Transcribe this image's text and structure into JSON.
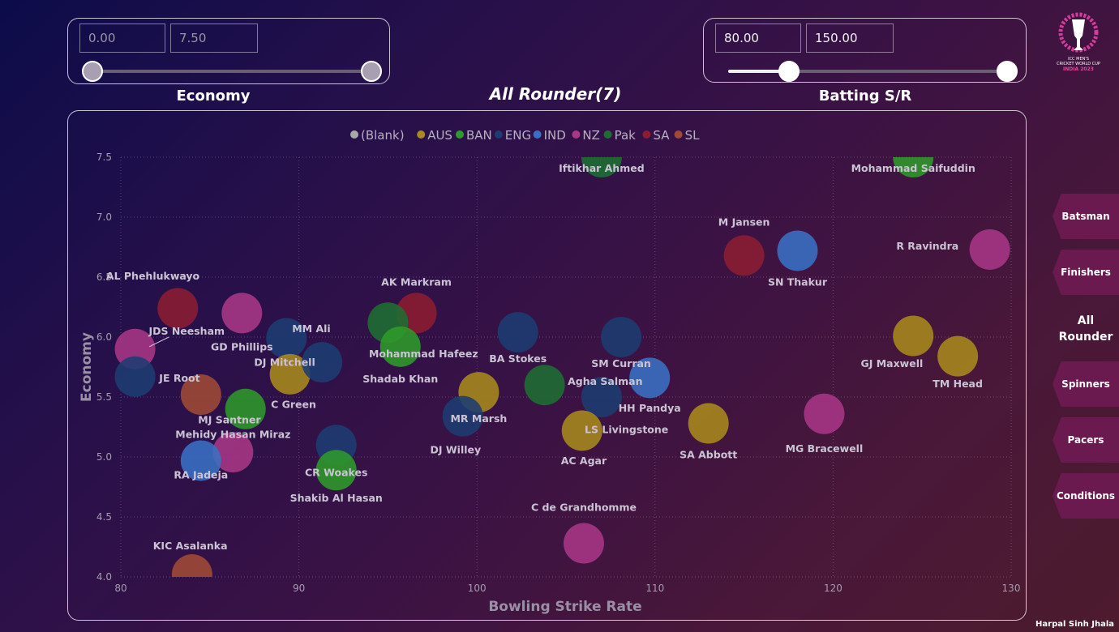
{
  "economy_slider": {
    "min_value": "0.00",
    "max_value": "7.50",
    "label": "Economy"
  },
  "batting_slider": {
    "min_value": "80.00",
    "max_value": "150.00",
    "label": "Batting S/R"
  },
  "chart_title": "All Rounder(7)",
  "nav": [
    "Batsman",
    "Finishers",
    "All Rounder",
    "Spinners",
    "Pacers",
    "Conditions"
  ],
  "author": "Harpal Sinh Jhala",
  "logo": {
    "line1": "ICC MEN'S",
    "line2": "CRICKET WORLD CUP",
    "line3": "INDIA 2023"
  },
  "colors": {
    "AUS": "#a98a1c",
    "BAN": "#2f9a2a",
    "ENG": "#1c3c72",
    "IND": "#3a6fc4",
    "NZ": "#a93786",
    "Pak": "#1e6e32",
    "SA": "#8c1c32",
    "SL": "#a04a36",
    "(Blank)": "#a8a8a8"
  },
  "chart_data": {
    "type": "scatter",
    "xlabel": "Bowling Strike Rate",
    "ylabel": "Economy",
    "xlim": [
      80,
      130
    ],
    "ylim": [
      4.0,
      7.5
    ],
    "xticks": [
      "80",
      "90",
      "100",
      "110",
      "120",
      "130"
    ],
    "yticks": [
      "4.0",
      "4.5",
      "5.0",
      "5.5",
      "6.0",
      "6.5",
      "7.0",
      "7.5"
    ],
    "grid": true,
    "legend_position": "top",
    "legend": [
      "(Blank)",
      "AUS",
      "BAN",
      "ENG",
      "IND",
      "NZ",
      "Pak",
      "SA",
      "SL"
    ],
    "points": [
      {
        "name": "Iftikhar Ahmed",
        "team": "Pak",
        "x": 107.0,
        "y": 7.5
      },
      {
        "name": "Mohammad Saifuddin",
        "team": "BAN",
        "x": 124.5,
        "y": 7.5
      },
      {
        "name": "M Jansen",
        "team": "SA",
        "x": 115.0,
        "y": 6.68
      },
      {
        "name": "SN Thakur",
        "team": "IND",
        "x": 118.0,
        "y": 6.72
      },
      {
        "name": "R Ravindra",
        "team": "NZ",
        "x": 128.8,
        "y": 6.73
      },
      {
        "name": "AL Phehlukwayo",
        "team": "SA",
        "x": 83.2,
        "y": 6.24
      },
      {
        "name": "JDS Neesham",
        "team": "NZ",
        "x": 80.8,
        "y": 5.9
      },
      {
        "name": "GD Phillips",
        "team": "NZ",
        "x": 86.8,
        "y": 6.2
      },
      {
        "name": "MM Ali",
        "team": "ENG",
        "x": 89.3,
        "y": 5.99
      },
      {
        "name": "AK Markram",
        "team": "SA",
        "x": 96.6,
        "y": 6.2
      },
      {
        "name": "Mohammad Hafeez",
        "team": "Pak",
        "x": 95.0,
        "y": 6.12
      },
      {
        "name": "Shadab Khan",
        "team": "BAN",
        "x": 95.7,
        "y": 5.92
      },
      {
        "name": "BA Stokes",
        "team": "ENG",
        "x": 102.3,
        "y": 6.04
      },
      {
        "name": "SM Curran",
        "team": "ENG",
        "x": 108.1,
        "y": 6.0
      },
      {
        "name": "GJ Maxwell",
        "team": "AUS",
        "x": 124.5,
        "y": 6.01
      },
      {
        "name": "TM Head",
        "team": "AUS",
        "x": 127.0,
        "y": 5.84
      },
      {
        "name": "JE Root",
        "team": "ENG",
        "x": 80.8,
        "y": 5.67
      },
      {
        "name": "DJ Mitchell",
        "team": "AUS",
        "x": 89.5,
        "y": 5.69
      },
      {
        "name": "C Green",
        "team": "ENG",
        "x": 91.3,
        "y": 5.79
      },
      {
        "name": "Agha Salman",
        "team": "Pak",
        "x": 103.8,
        "y": 5.6
      },
      {
        "name": "HH Pandya",
        "team": "IND",
        "x": 109.7,
        "y": 5.66
      },
      {
        "name": "MJ Santner",
        "team": "SL",
        "x": 84.5,
        "y": 5.52
      },
      {
        "name": "C Green ",
        "team": "BAN",
        "x": 87.0,
        "y": 5.4
      },
      {
        "name": "DJ Willey",
        "team": "AUS",
        "x": 100.1,
        "y": 5.54
      },
      {
        "name": "MR Marsh",
        "team": "ENG",
        "x": 99.2,
        "y": 5.34
      },
      {
        "name": "LS Livingstone",
        "team": "ENG",
        "x": 107.0,
        "y": 5.5
      },
      {
        "name": "AC Agar",
        "team": "AUS",
        "x": 105.9,
        "y": 5.22
      },
      {
        "name": "SA Abbott",
        "team": "AUS",
        "x": 113.0,
        "y": 5.28
      },
      {
        "name": "MG Bracewell",
        "team": "NZ",
        "x": 119.5,
        "y": 5.36
      },
      {
        "name": "Mehidy Hasan Miraz",
        "team": "NZ",
        "x": 86.3,
        "y": 5.04
      },
      {
        "name": "RA Jadeja",
        "team": "IND",
        "x": 84.5,
        "y": 4.97
      },
      {
        "name": "CR Woakes",
        "team": "ENG",
        "x": 92.1,
        "y": 5.1
      },
      {
        "name": "Shakib Al Hasan",
        "team": "BAN",
        "x": 92.1,
        "y": 4.89
      },
      {
        "name": "C de Grandhomme",
        "team": "NZ",
        "x": 106.0,
        "y": 4.28
      },
      {
        "name": "KIC Asalanka",
        "team": "SL",
        "x": 84.0,
        "y": 4.02
      }
    ],
    "labels": [
      {
        "text": "Iftikhar Ahmed",
        "x": 107.0,
        "y": 7.38
      },
      {
        "text": "Mohammad Saifuddin",
        "x": 124.5,
        "y": 7.38
      },
      {
        "text": "M Jansen",
        "x": 115.0,
        "y": 6.93
      },
      {
        "text": "SN Thakur",
        "x": 118.0,
        "y": 6.43
      },
      {
        "text": "R Ravindra",
        "x": 125.3,
        "y": 6.73
      },
      {
        "text": "AL Phehlukwayo",
        "x": 81.8,
        "y": 6.48
      },
      {
        "text": "JDS Neesham",
        "x": 83.7,
        "y": 6.02
      },
      {
        "text": "GD Phillips",
        "x": 86.8,
        "y": 5.89
      },
      {
        "text": "MM Ali",
        "x": 90.7,
        "y": 6.04
      },
      {
        "text": "AK Markram",
        "x": 96.6,
        "y": 6.43
      },
      {
        "text": "Mohammad Hafeez",
        "x": 97.0,
        "y": 5.83
      },
      {
        "text": "Shadab Khan",
        "x": 95.7,
        "y": 5.62
      },
      {
        "text": "BA Stokes",
        "x": 102.3,
        "y": 5.79
      },
      {
        "text": "SM Curran",
        "x": 108.1,
        "y": 5.75
      },
      {
        "text": "GJ Maxwell",
        "x": 123.3,
        "y": 5.75
      },
      {
        "text": "TM Head",
        "x": 127.0,
        "y": 5.58
      },
      {
        "text": "JE Root",
        "x": 83.3,
        "y": 5.63
      },
      {
        "text": "DJ Mitchell",
        "x": 89.2,
        "y": 5.76
      },
      {
        "text": "C Green",
        "x": 89.7,
        "y": 5.41
      },
      {
        "text": "Agha Salman",
        "x": 107.2,
        "y": 5.6
      },
      {
        "text": "HH Pandya",
        "x": 109.7,
        "y": 5.38
      },
      {
        "text": "MJ Santner",
        "x": 86.1,
        "y": 5.28
      },
      {
        "text": "Mehidy Hasan Miraz",
        "x": 86.3,
        "y": 5.16
      },
      {
        "text": "MR Marsh",
        "x": 100.1,
        "y": 5.29
      },
      {
        "text": "DJ Willey",
        "x": 98.8,
        "y": 5.03
      },
      {
        "text": "LS Livingstone",
        "x": 108.4,
        "y": 5.2
      },
      {
        "text": "AC Agar",
        "x": 106.0,
        "y": 4.94
      },
      {
        "text": "SA Abbott",
        "x": 113.0,
        "y": 4.99
      },
      {
        "text": "MG Bracewell",
        "x": 119.5,
        "y": 5.04
      },
      {
        "text": "RA Jadeja",
        "x": 84.5,
        "y": 4.82
      },
      {
        "text": "CR Woakes",
        "x": 92.1,
        "y": 4.84
      },
      {
        "text": "Shakib Al Hasan",
        "x": 92.1,
        "y": 4.63
      },
      {
        "text": "C de Grandhomme",
        "x": 106.0,
        "y": 4.55
      },
      {
        "text": "KIC Asalanka",
        "x": 83.9,
        "y": 4.23
      }
    ]
  }
}
